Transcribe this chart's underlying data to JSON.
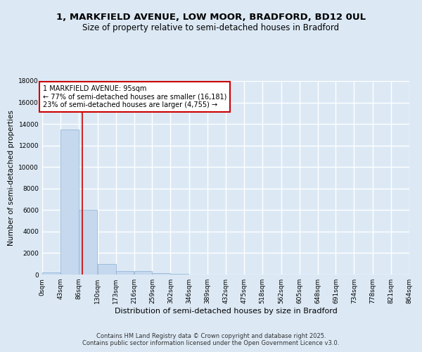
{
  "title": "1, MARKFIELD AVENUE, LOW MOOR, BRADFORD, BD12 0UL",
  "subtitle": "Size of property relative to semi-detached houses in Bradford",
  "xlabel": "Distribution of semi-detached houses by size in Bradford",
  "ylabel": "Number of semi-detached properties",
  "bin_edges": [
    0,
    43,
    86,
    130,
    173,
    216,
    259,
    302,
    346,
    389,
    432,
    475,
    518,
    562,
    605,
    648,
    691,
    734,
    778,
    821,
    864
  ],
  "bin_counts": [
    200,
    13500,
    6000,
    1000,
    350,
    300,
    150,
    50,
    10,
    5,
    2,
    2,
    1,
    1,
    0,
    0,
    0,
    0,
    0,
    0
  ],
  "bar_color": "#c5d8ee",
  "bar_edge_color": "#8ab0d0",
  "property_size": 95,
  "annotation_title": "1 MARKFIELD AVENUE: 95sqm",
  "annotation_line1": "← 77% of semi-detached houses are smaller (16,181)",
  "annotation_line2": "23% of semi-detached houses are larger (4,755) →",
  "annotation_box_color": "#ffffff",
  "annotation_box_edge": "#cc0000",
  "vline_color": "#cc0000",
  "ylim": [
    0,
    18000
  ],
  "yticks": [
    0,
    2000,
    4000,
    6000,
    8000,
    10000,
    12000,
    14000,
    16000,
    18000
  ],
  "background_color": "#dce9f5",
  "grid_color": "#ffffff",
  "footer_line1": "Contains HM Land Registry data © Crown copyright and database right 2025.",
  "footer_line2": "Contains public sector information licensed under the Open Government Licence v3.0.",
  "title_fontsize": 9.5,
  "subtitle_fontsize": 8.5,
  "axis_label_fontsize": 7.5,
  "tick_fontsize": 6.5,
  "annotation_fontsize": 7,
  "footer_fontsize": 6
}
